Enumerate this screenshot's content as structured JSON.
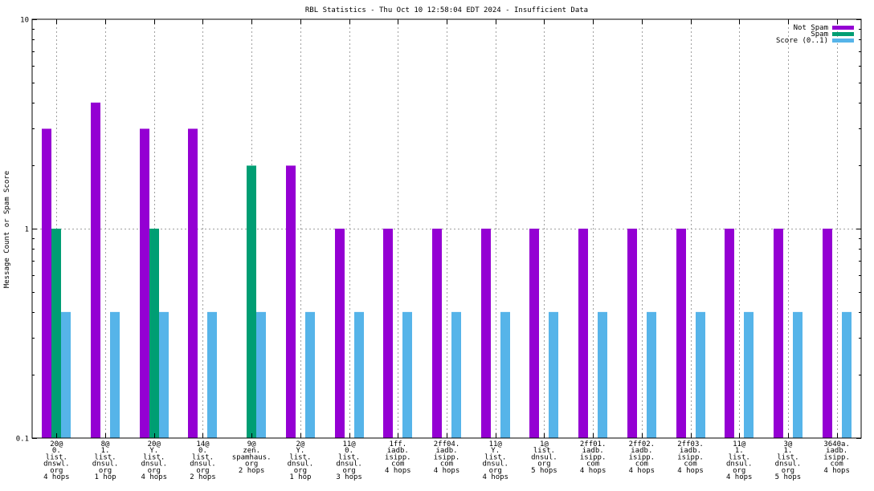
{
  "chart_data": {
    "type": "bar",
    "title": "RBL Statistics - Thu Oct 10 12:58:04 EDT 2024 - Insufficient Data",
    "xlabel": "",
    "ylabel": "Message Count or Spam Score",
    "yscale": "log",
    "ylim": [
      0.1,
      10
    ],
    "yticks": [
      "0.1",
      "1",
      "10"
    ],
    "grid": true,
    "legend_position": "top-right",
    "categories": [
      "20@\n0.\nlist.\ndnswl.\norg\n4 hops",
      "8@\n1.\nlist.\ndnsul.\norg\n1 hop",
      "20@\nY.\nlist.\ndnsul.\norg\n4 hops",
      "14@\n0.\nlist.\ndnsul.\norg\n2 hops",
      "9@\nzen.\nspamhaus.\norg\n2 hops",
      "2@\nY.\nlist.\ndnsul.\norg\n1 hop",
      "11@\n0.\nlist.\ndnsul.\norg\n3 hops",
      "1ff.\niadb.\nisipp.\ncom\n4 hops",
      "2ff04.\niadb.\nisipp.\ncom\n4 hops",
      "11@\nY.\nlist.\ndnsul.\norg\n4 hops",
      "1@\nlist.\ndnsul.\norg\n5 hops",
      "2ff01.\niadb.\nisipp.\ncom\n4 hops",
      "2ff02.\niadb.\nisipp.\ncom\n4 hops",
      "2ff03.\niadb.\nisipp.\ncom\n4 hops",
      "11@\n1.\nlist.\ndnsul.\norg\n4 hops",
      "3@\n1.\nlist.\ndnsul.\norg\n5 hops",
      "3640a.\niadb.\nisipp.\ncom\n4 hops"
    ],
    "series": [
      {
        "name": "Not Spam",
        "color": "#9400d3",
        "values": [
          3,
          4,
          3,
          3,
          null,
          2,
          1,
          1,
          1,
          1,
          1,
          1,
          1,
          1,
          1,
          1,
          1
        ]
      },
      {
        "name": "Spam",
        "color": "#009e73",
        "values": [
          1,
          null,
          1,
          null,
          2,
          null,
          null,
          null,
          null,
          null,
          null,
          null,
          null,
          null,
          null,
          null,
          null
        ]
      },
      {
        "name": "Score (0..1)",
        "color": "#56b4e9",
        "values": [
          0.4,
          0.4,
          0.4,
          0.4,
          0.4,
          0.4,
          0.4,
          0.4,
          0.4,
          0.4,
          0.4,
          0.4,
          0.4,
          0.4,
          0.4,
          0.4,
          0.4
        ]
      }
    ]
  }
}
